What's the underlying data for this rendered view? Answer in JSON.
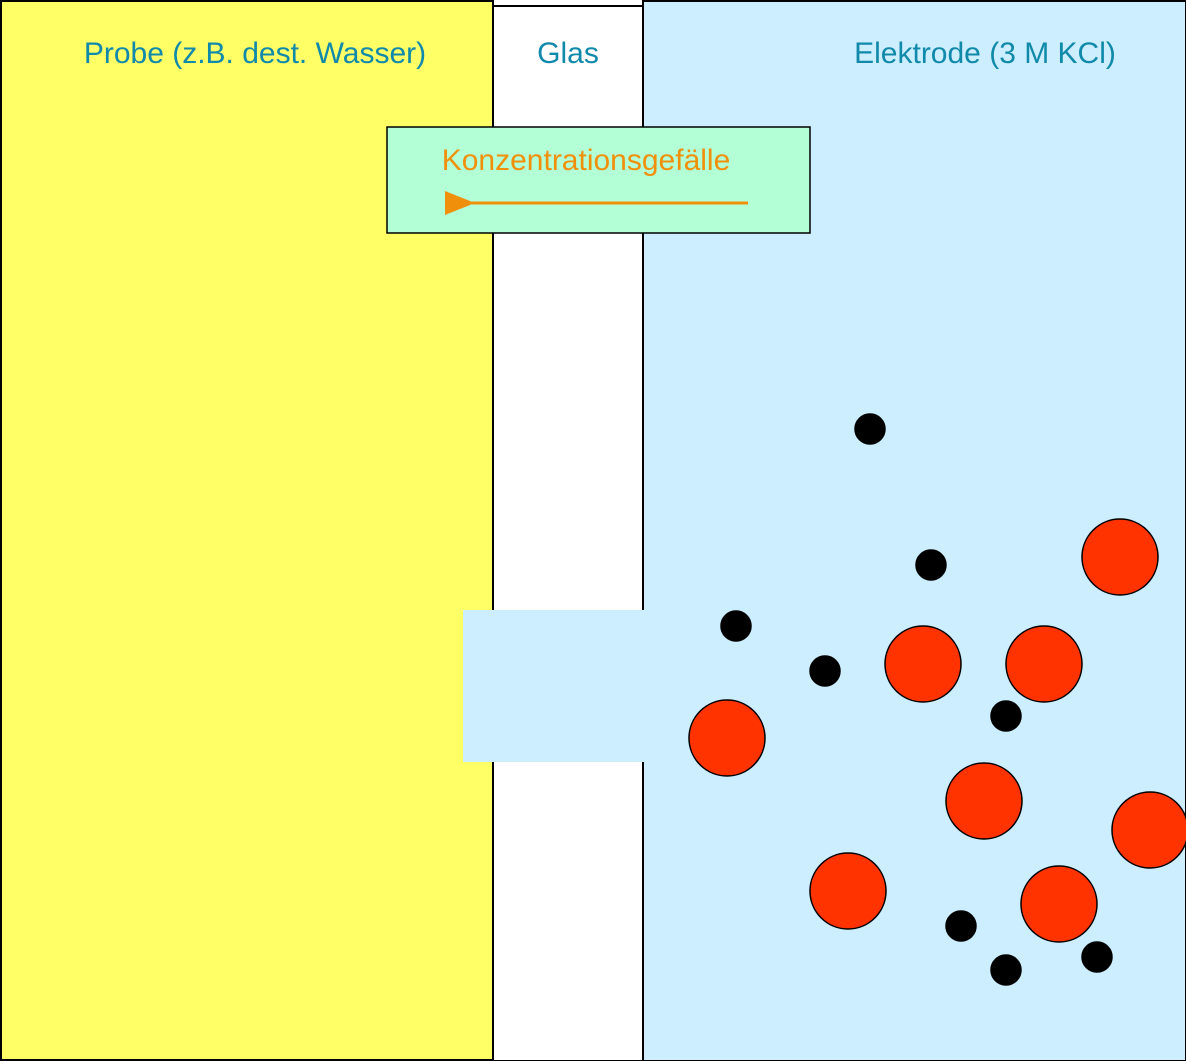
{
  "labels": {
    "sample": "Probe (z.B. dest. Wasser)",
    "glass": "Glas",
    "electrode": "Elektrode (3 M KCl)"
  },
  "gradient_box": {
    "label": "Konzentrationsgefälle"
  }
}
